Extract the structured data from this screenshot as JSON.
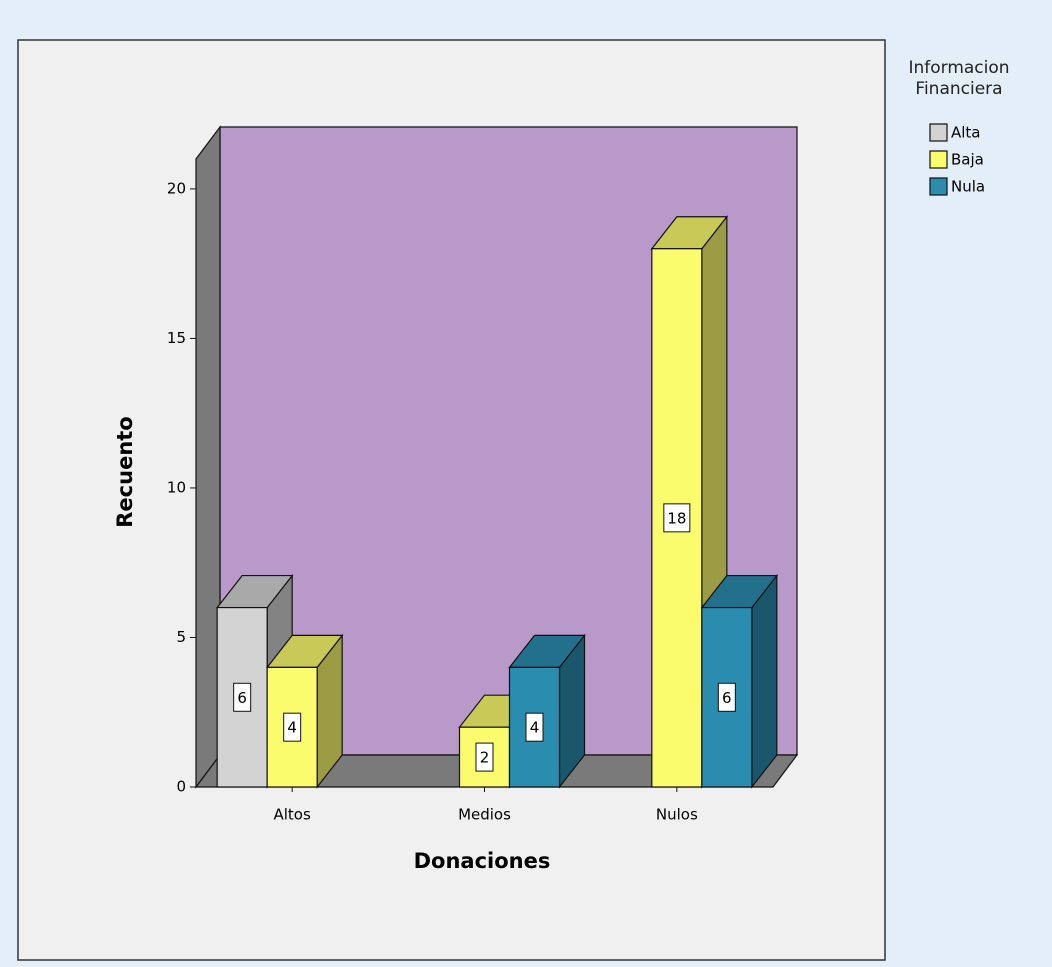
{
  "chart_data": {
    "type": "bar3d",
    "x_label": "Donaciones",
    "y_label": "Recuento",
    "legend_title": "Informacion Financiera",
    "categories": [
      "Altos",
      "Medios",
      "Nulos"
    ],
    "series": [
      {
        "name": "Alta",
        "color": "#d3d3d3",
        "values": [
          6,
          null,
          null
        ]
      },
      {
        "name": "Baja",
        "color": "#fbfb6e",
        "values": [
          4,
          2,
          18
        ]
      },
      {
        "name": "Nula",
        "color": "#2a8cae",
        "values": [
          null,
          4,
          6
        ]
      }
    ],
    "ylim": [
      0,
      21
    ],
    "yticks": [
      0,
      5,
      10,
      15,
      20
    ],
    "back_wall_color": "#b899c9",
    "wall_color": "#7a7a7a",
    "legend": "top-right"
  }
}
